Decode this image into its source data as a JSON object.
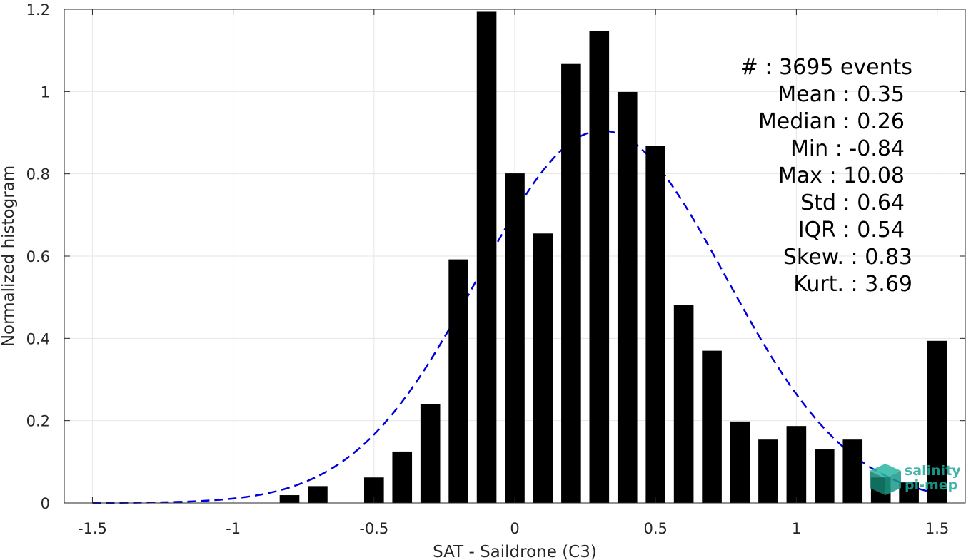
{
  "chart_data": {
    "type": "bar",
    "xlabel": "SAT - Saildrone (C3)",
    "ylabel": "Normalized histogram",
    "xlim": [
      -1.6,
      1.6
    ],
    "ylim": [
      0,
      1.2
    ],
    "x_ticks": [
      -1.5,
      -1,
      -0.5,
      0,
      0.5,
      1,
      1.5
    ],
    "x_tick_labels": [
      "-1.5",
      "-1",
      "-0.5",
      "0",
      "0.5",
      "1",
      "1.5"
    ],
    "y_ticks": [
      0,
      0.2,
      0.4,
      0.6,
      0.8,
      1,
      1.2
    ],
    "y_tick_labels": [
      "0",
      "0.2",
      "0.4",
      "0.6",
      "0.8",
      "1",
      "1.2"
    ],
    "grid": true,
    "bar_color": "#000000",
    "bar_width": 0.07,
    "bins": [
      {
        "x": -0.8,
        "value": 0.019
      },
      {
        "x": -0.7,
        "value": 0.041
      },
      {
        "x": -0.5,
        "value": 0.062
      },
      {
        "x": -0.4,
        "value": 0.125
      },
      {
        "x": -0.3,
        "value": 0.24
      },
      {
        "x": -0.2,
        "value": 0.592
      },
      {
        "x": -0.1,
        "value": 1.194
      },
      {
        "x": 0.0,
        "value": 0.801
      },
      {
        "x": 0.1,
        "value": 0.655
      },
      {
        "x": 0.2,
        "value": 1.067
      },
      {
        "x": 0.3,
        "value": 1.148
      },
      {
        "x": 0.4,
        "value": 0.999
      },
      {
        "x": 0.5,
        "value": 0.868
      },
      {
        "x": 0.6,
        "value": 0.481
      },
      {
        "x": 0.7,
        "value": 0.37
      },
      {
        "x": 0.8,
        "value": 0.198
      },
      {
        "x": 0.9,
        "value": 0.154
      },
      {
        "x": 1.0,
        "value": 0.187
      },
      {
        "x": 1.1,
        "value": 0.13
      },
      {
        "x": 1.2,
        "value": 0.154
      },
      {
        "x": 1.3,
        "value": 0.062
      },
      {
        "x": 1.4,
        "value": 0.05
      },
      {
        "x": 1.5,
        "value": 0.394
      }
    ],
    "fit_curve": {
      "style": "dashed",
      "color": "#0000dd",
      "x_range": [
        -1.5,
        1.5
      ],
      "mean": 0.31,
      "std": 0.44,
      "peak": 0.905
    },
    "stats": [
      {
        "key": "count",
        "text": "#  : 3695 events"
      },
      {
        "key": "mean",
        "text": "Mean : 0.35"
      },
      {
        "key": "median",
        "text": "Median : 0.26"
      },
      {
        "key": "min",
        "text": "Min : -0.84"
      },
      {
        "key": "max",
        "text": "Max : 10.08"
      },
      {
        "key": "std",
        "text": "Std : 0.64"
      },
      {
        "key": "iqr",
        "text": "IQR : 0.54"
      },
      {
        "key": "skew",
        "text": "Skew. : 0.83"
      },
      {
        "key": "kurt",
        "text": "Kurt. : 3.69"
      }
    ],
    "logo": {
      "line1": "salinity",
      "line2": "pi-mep",
      "color": "#1fa89a",
      "icon": "cube-logo-icon"
    }
  }
}
